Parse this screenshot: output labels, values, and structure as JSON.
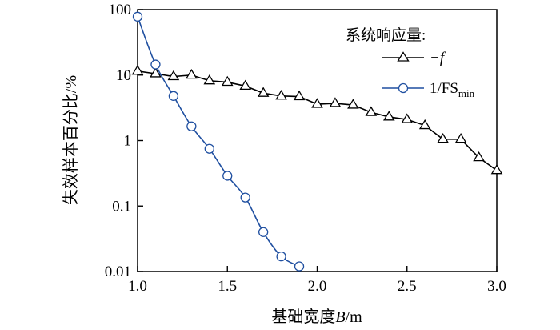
{
  "chart_data": {
    "type": "line",
    "xlabel_main": "基础宽度",
    "xlabel_italic": "B",
    "xlabel_unit": "/m",
    "ylabel": "失效样本百分比/%",
    "x_scale": "linear",
    "y_scale": "log",
    "xlim": [
      1.0,
      3.0
    ],
    "ylim": [
      0.01,
      100
    ],
    "x_ticks": [
      "1.0",
      "1.5",
      "2.0",
      "2.5",
      "3.0"
    ],
    "y_ticks": [
      "0.01",
      "0.1",
      "1",
      "10",
      "100"
    ],
    "legend": {
      "title": "系统响应量:",
      "position": "top-right"
    },
    "series": [
      {
        "name": "−f",
        "color": "#000000",
        "marker": "triangle",
        "x": [
          1.0,
          1.1,
          1.2,
          1.3,
          1.4,
          1.5,
          1.6,
          1.7,
          1.8,
          1.9,
          2.0,
          2.1,
          2.2,
          2.3,
          2.4,
          2.5,
          2.6,
          2.7,
          2.8,
          2.9,
          3.0
        ],
        "y": [
          11.5,
          10.5,
          9.5,
          10.0,
          8.2,
          7.8,
          6.8,
          5.3,
          4.8,
          4.7,
          3.6,
          3.7,
          3.5,
          2.7,
          2.3,
          2.1,
          1.7,
          1.05,
          1.05,
          0.55,
          0.35
        ]
      },
      {
        "name_main": "1/FS",
        "name_sub": "min",
        "color": "#1f4fa0",
        "marker": "circle",
        "x": [
          1.0,
          1.1,
          1.2,
          1.3,
          1.4,
          1.5,
          1.6,
          1.7,
          1.8,
          1.9
        ],
        "y": [
          78,
          14.5,
          4.8,
          1.65,
          0.75,
          0.29,
          0.135,
          0.04,
          0.017,
          0.012
        ]
      }
    ]
  }
}
